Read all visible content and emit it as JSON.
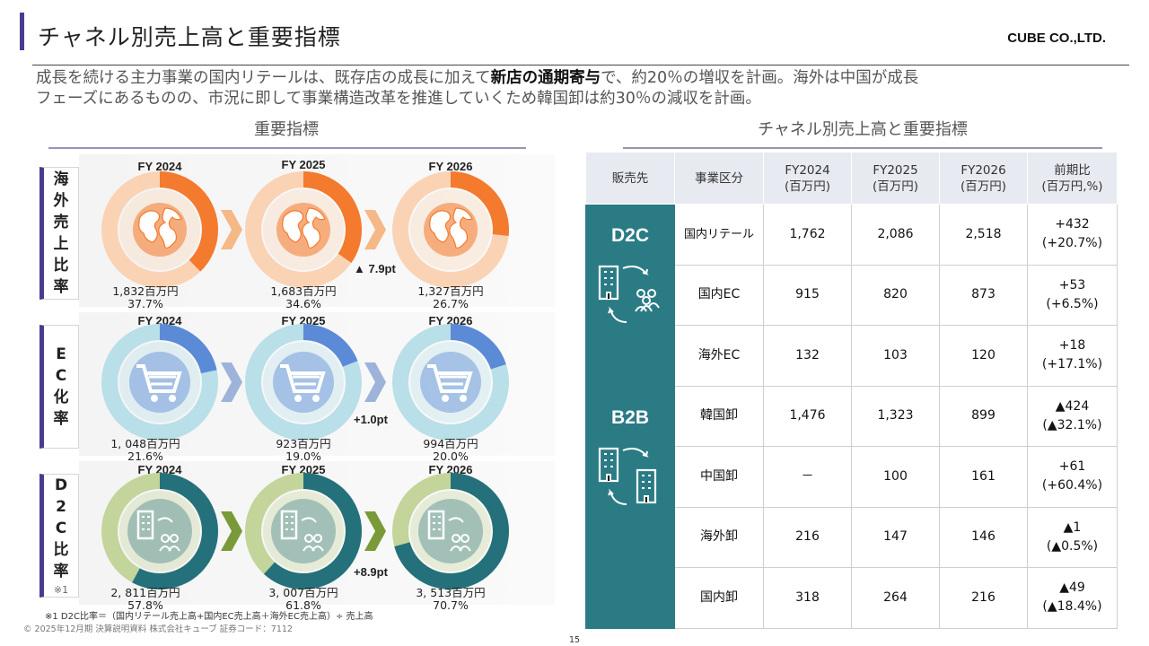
{
  "header": {
    "title": "チャネル別売上高と重要指標",
    "company": "CUBE CO.,LTD."
  },
  "lead": {
    "part1": "成長を続ける主力事業の国内リテールは、既存店の成長に加えて",
    "bold": "新店の通期寄与",
    "part2": "で、約20％の増収を計画。海外は中国が成長",
    "line2": "フェーズにあるものの、市況に即して事業構造改革を推進していくため韓国卸は約30％の減収を計画。"
  },
  "left": {
    "section_title": "重要指標",
    "rows": [
      {
        "label": [
          "海",
          "外",
          "売",
          "上",
          "比",
          "率"
        ],
        "note": "",
        "icon": "globe-icon",
        "ring_color": "#fad3b5",
        "fill_color": "#f47a2e",
        "items": [
          {
            "fy": "FY 2024",
            "amount": "1,832百万円",
            "pct": "37.7%",
            "value": 37.7
          },
          {
            "fy": "FY 2025",
            "amount": "1,683百万円",
            "pct": "34.6%",
            "value": 34.6
          },
          {
            "fy": "FY 2026",
            "amount": "1,327百万円",
            "pct": "26.7%",
            "value": 26.7
          }
        ],
        "chevron_color": "#f5b887",
        "delta": "▲ 7.9pt"
      },
      {
        "label": [
          "E",
          "C",
          "化",
          "率"
        ],
        "note": "",
        "icon": "shopping-cart-icon",
        "ring_color": "#b9dfe8",
        "fill_color": "#5b8bd6",
        "items": [
          {
            "fy": "FY 2024",
            "amount": "1, 048百万円",
            "pct": "21.6%",
            "value": 21.6
          },
          {
            "fy": "FY 2025",
            "amount": "923百万円",
            "pct": "19.0%",
            "value": 19.0
          },
          {
            "fy": "FY 2026",
            "amount": "994百万円",
            "pct": "20.0%",
            "value": 20.0
          }
        ],
        "chevron_color": "#9db3d9",
        "delta": "+1.0pt"
      },
      {
        "label": [
          "D",
          "2",
          "C",
          "比",
          "率"
        ],
        "note": "※1",
        "icon": "building-people-icon",
        "ring_color": "#c3d59a",
        "fill_color": "#24717c",
        "items": [
          {
            "fy": "FY 2024",
            "amount": "2, 811百万円",
            "pct": "57.8%",
            "value": 57.8
          },
          {
            "fy": "FY 2025",
            "amount": "3, 007百万円",
            "pct": "61.8%",
            "value": 61.8
          },
          {
            "fy": "FY 2026",
            "amount": "3, 513百万円",
            "pct": "70.7%",
            "value": 70.7
          }
        ],
        "chevron_color": "#7a9a3a",
        "delta": "+8.9pt"
      }
    ],
    "footnote": "※1 D2C比率＝（国内リテール売上高+国内EC売上高＋海外EC売上高）÷ 売上高"
  },
  "right": {
    "section_title": "チャネル別売上高と重要指標",
    "headers": [
      "販売先",
      "事業区分",
      "FY2024\n(百万円)",
      "FY2025\n(百万円)",
      "FY2026\n(百万円)",
      "前期比\n(百万円,%)"
    ],
    "groups": [
      {
        "name": "D2C",
        "icon": "office-to-people-icon",
        "rows": [
          {
            "segment": "国内リテール",
            "fy2024": "1,762",
            "fy2025": "2,086",
            "fy2026": "2,518",
            "yoy": "+432",
            "yoy_pct": "(+20.7%)"
          },
          {
            "segment": "国内EC",
            "fy2024": "915",
            "fy2025": "820",
            "fy2026": "873",
            "yoy": "+53",
            "yoy_pct": "(+6.5%)"
          },
          {
            "segment": "海外EC",
            "fy2024": "132",
            "fy2025": "103",
            "fy2026": "120",
            "yoy": "+18",
            "yoy_pct": "(+17.1%)"
          }
        ]
      },
      {
        "name": "B2B",
        "icon": "office-to-office-icon",
        "rows": [
          {
            "segment": "韓国卸",
            "fy2024": "1,476",
            "fy2025": "1,323",
            "fy2026": "899",
            "yoy": "▲424",
            "yoy_pct": "(▲32.1%)"
          },
          {
            "segment": "中国卸",
            "fy2024": "－",
            "fy2025": "100",
            "fy2026": "161",
            "yoy": "+61",
            "yoy_pct": "(+60.4%)"
          },
          {
            "segment": "海外卸",
            "fy2024": "216",
            "fy2025": "147",
            "fy2026": "146",
            "yoy": "▲1",
            "yoy_pct": "(▲0.5%)"
          },
          {
            "segment": "国内卸",
            "fy2024": "318",
            "fy2025": "264",
            "fy2026": "216",
            "yoy": "▲49",
            "yoy_pct": "(▲18.4%)"
          }
        ]
      }
    ]
  },
  "footer": {
    "copyright": "© 2025年12月期 決算説明資料 株式会社キューブ 証券コード：7112",
    "page": "15"
  }
}
